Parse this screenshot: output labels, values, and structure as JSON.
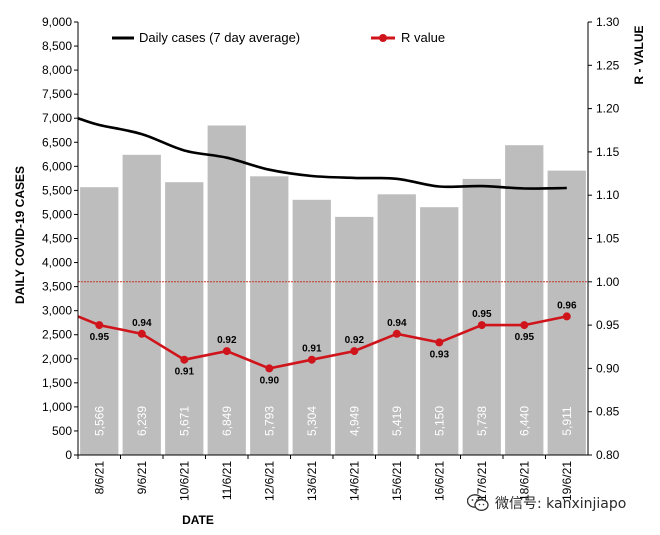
{
  "chart_data": {
    "type": "bar",
    "categories": [
      "8/6/21",
      "9/6/21",
      "10/6/21",
      "11/6/21",
      "12/6/21",
      "13/6/21",
      "14/6/21",
      "15/6/21",
      "16/6/21",
      "17/6/21",
      "18/6/21",
      "19/6/21"
    ],
    "series": [
      {
        "name": "Daily cases",
        "type": "bar",
        "values": [
          5566,
          6239,
          5671,
          6849,
          5793,
          5304,
          4949,
          5419,
          5150,
          5738,
          6440,
          5911
        ],
        "labels": [
          "5,566",
          "6,239",
          "5,671",
          "6,849",
          "5,793",
          "5,304",
          "4,949",
          "5,419",
          "5,150",
          "5,738",
          "6,440",
          "5,911"
        ],
        "color": "#bdbdbd"
      },
      {
        "name": "Daily cases (7 day average)",
        "type": "line",
        "axis": "left",
        "values": [
          6860,
          6670,
          6330,
          6180,
          5930,
          5800,
          5760,
          5740,
          5580,
          5590,
          5540,
          5550
        ],
        "start_value": 7000,
        "color": "#000000"
      },
      {
        "name": "R value",
        "type": "line",
        "axis": "right",
        "values": [
          0.95,
          0.94,
          0.91,
          0.92,
          0.9,
          0.91,
          0.92,
          0.94,
          0.93,
          0.95,
          0.95,
          0.96
        ],
        "labels": [
          "0.95",
          "0.94",
          "0.91",
          "0.92",
          "0.90",
          "0.91",
          "0.92",
          "0.94",
          "0.93",
          "0.95",
          "0.95",
          "0.96"
        ],
        "start_value": 0.96,
        "color": "#d0141b"
      }
    ],
    "reference_line": {
      "axis": "right",
      "value": 1.0,
      "color": "#c0392b"
    },
    "ylim": [
      0,
      9000
    ],
    "y2lim": [
      0.8,
      1.3
    ],
    "y_ticks": [
      "0",
      "500",
      "1,000",
      "1,500",
      "2,000",
      "2,500",
      "3,000",
      "3,500",
      "4,000",
      "4,500",
      "5,000",
      "5,500",
      "6,000",
      "6,500",
      "7,000",
      "7,500",
      "8,000",
      "8,500",
      "9,000"
    ],
    "y2_ticks": [
      "0.80",
      "0.85",
      "0.90",
      "0.95",
      "1.00",
      "1.05",
      "1.10",
      "1.15",
      "1.20",
      "1.25",
      "1.30"
    ],
    "xlabel": "DATE",
    "ylabel": "DAILY COVID-19 CASES",
    "y2label": "R - VALUE",
    "legend": [
      "Daily cases (7 day average)",
      "R value"
    ],
    "legend_position": "top",
    "grid": false
  },
  "watermark": {
    "text": "微信号: kanxinjiapo",
    "icon": "wechat-icon"
  }
}
